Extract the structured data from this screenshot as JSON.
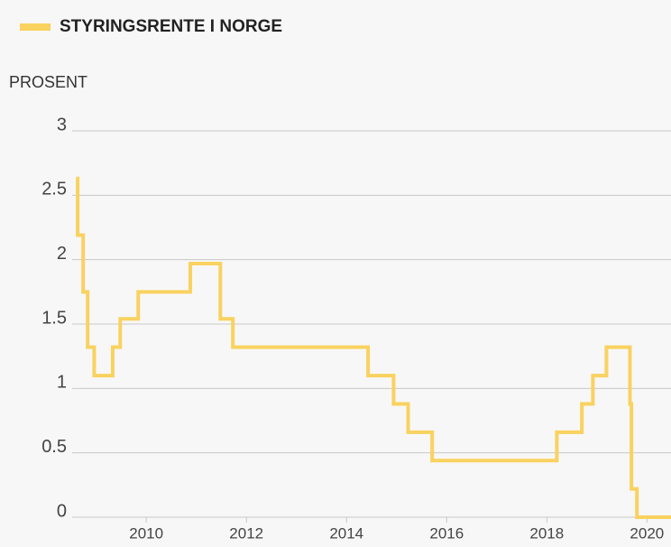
{
  "chart_data": {
    "type": "line",
    "step": "post",
    "legend_title": "STYRINGSRENTE I NORGE",
    "ylabel": "PROSENT",
    "series": [
      {
        "name": "STYRINGSRENTE I NORGE",
        "color": "#f9d25f",
        "x": [
          2008.6,
          2008.63,
          2008.74,
          2008.83,
          2008.96,
          2009.33,
          2009.48,
          2009.84,
          2010.88,
          2011.48,
          2011.73,
          2014.43,
          2014.94,
          2015.23,
          2015.71,
          2018.2,
          2018.7,
          2018.92,
          2019.19,
          2019.66,
          2019.69,
          2019.8,
          2020.48
        ],
        "values": [
          2.63,
          2.19,
          1.75,
          1.32,
          1.1,
          1.32,
          1.54,
          1.75,
          1.97,
          1.54,
          1.32,
          1.1,
          0.88,
          0.66,
          0.44,
          0.66,
          0.88,
          1.1,
          1.32,
          0.88,
          0.22,
          0,
          0
        ]
      }
    ],
    "xlim": [
      2008.52,
      2020.48
    ],
    "xticks": [
      2010,
      2012,
      2014,
      2016,
      2018,
      2020
    ],
    "ylim": [
      0,
      3
    ],
    "yticks": [
      0,
      0.5,
      1,
      1.5,
      2,
      2.5,
      3
    ],
    "grid": true
  }
}
